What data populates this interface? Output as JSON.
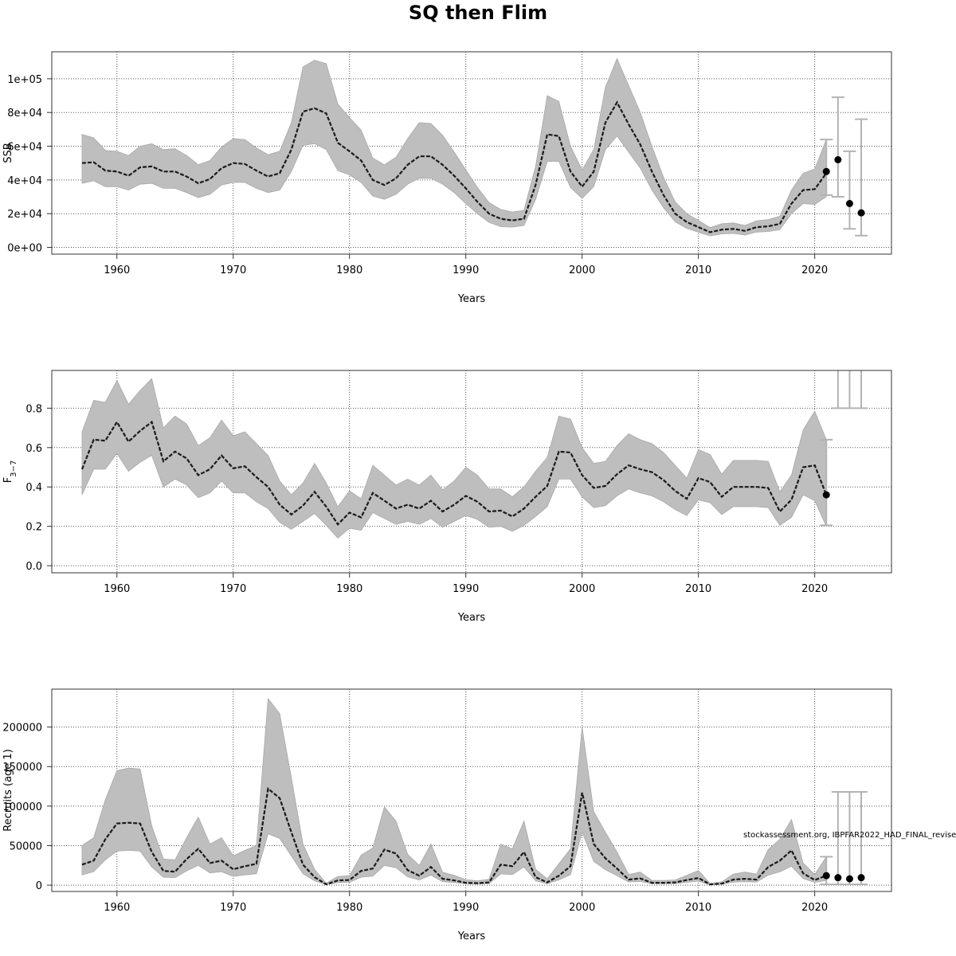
{
  "chart_data": {
    "title": "SQ then Flim",
    "annotation": "stockassessment.org, IBPFAR2022_HAD_FINAL_revised",
    "colors": {
      "band": "#bebebe",
      "band_edge": "#a8a8a8",
      "line": "#1a1a1a",
      "grid": "#555555",
      "forecast_bar": "#b3b3b3",
      "point": "#000000"
    },
    "panels": [
      {
        "type": "line",
        "id": "ssb",
        "ylabel": "SSB",
        "xlabel": "Years",
        "xlim": [
          1954.4,
          2026.6
        ],
        "ylim": [
          -4000,
          116000
        ],
        "xticks": [
          1960,
          1970,
          1980,
          1990,
          2000,
          2010,
          2020
        ],
        "yticks": [
          0,
          20000,
          40000,
          60000,
          80000,
          100000
        ],
        "yticklabels": [
          "0e+00",
          "2e+04",
          "4e+04",
          "6e+04",
          "8e+04",
          "1e+05"
        ],
        "grid": true,
        "x": [
          1957,
          1958,
          1959,
          1960,
          1961,
          1962,
          1963,
          1964,
          1965,
          1966,
          1967,
          1968,
          1969,
          1970,
          1971,
          1972,
          1973,
          1974,
          1975,
          1976,
          1977,
          1978,
          1979,
          1980,
          1981,
          1982,
          1983,
          1984,
          1985,
          1986,
          1987,
          1988,
          1989,
          1990,
          1991,
          1992,
          1993,
          1994,
          1995,
          1996,
          1997,
          1998,
          1999,
          2000,
          2001,
          2002,
          2003,
          2004,
          2005,
          2006,
          2007,
          2008,
          2009,
          2010,
          2011,
          2012,
          2013,
          2014,
          2015,
          2016,
          2017,
          2018,
          2019,
          2020,
          2021
        ],
        "estimate": [
          50000,
          50500,
          45500,
          45000,
          42500,
          47500,
          48000,
          45000,
          45000,
          42000,
          38000,
          40500,
          47000,
          50000,
          49500,
          45500,
          42000,
          44000,
          58000,
          80500,
          82500,
          79500,
          62000,
          57000,
          51500,
          40000,
          37000,
          41000,
          49000,
          54000,
          54000,
          49000,
          42500,
          35000,
          27000,
          20000,
          17000,
          16000,
          17000,
          37000,
          67000,
          66000,
          45000,
          36000,
          45000,
          74000,
          86000,
          73000,
          61000,
          45000,
          31000,
          20000,
          15000,
          12000,
          9000,
          10500,
          11000,
          9800,
          12000,
          12500,
          14000,
          26000,
          34000,
          34500,
          44000
        ],
        "lower": [
          38000,
          39500,
          36000,
          36000,
          34000,
          37500,
          38000,
          35000,
          35000,
          32500,
          29500,
          31500,
          37000,
          38500,
          38500,
          35000,
          32500,
          34000,
          45000,
          60500,
          61500,
          58000,
          45500,
          43000,
          38500,
          30500,
          28500,
          31500,
          37500,
          41000,
          41000,
          37500,
          32500,
          26000,
          20000,
          14800,
          12300,
          12000,
          13000,
          28500,
          51000,
          51000,
          35500,
          29000,
          36000,
          58000,
          66000,
          56500,
          47000,
          34000,
          23500,
          15200,
          11300,
          9000,
          6800,
          8000,
          8300,
          7300,
          9100,
          9400,
          10500,
          20000,
          26000,
          25500,
          30000
        ],
        "upper": [
          67000,
          65000,
          57500,
          57000,
          54500,
          60000,
          61500,
          58000,
          58500,
          54500,
          49000,
          51500,
          59500,
          64500,
          64000,
          59000,
          55000,
          57000,
          74000,
          107000,
          111000,
          109000,
          85000,
          77000,
          69500,
          53000,
          49000,
          53500,
          64500,
          74000,
          73500,
          66500,
          56500,
          46000,
          35500,
          26500,
          22500,
          21000,
          22000,
          48000,
          90000,
          86500,
          60000,
          46000,
          58000,
          95000,
          112000,
          96000,
          80000,
          60000,
          41500,
          27000,
          20000,
          16000,
          11800,
          14000,
          14500,
          13000,
          15800,
          16500,
          18500,
          34000,
          44000,
          46500,
          64000
        ],
        "forecast": [
          {
            "x": 2021,
            "mean": 45000,
            "low": 31000,
            "high": 64000
          },
          {
            "x": 2022,
            "mean": 52000,
            "low": 30000,
            "high": 89000
          },
          {
            "x": 2023,
            "mean": 26000,
            "low": 11000,
            "high": 57000
          },
          {
            "x": 2024,
            "mean": 20500,
            "low": 7000,
            "high": 76000
          }
        ]
      },
      {
        "type": "line",
        "id": "fbar",
        "ylabel": "F",
        "ylabel_subscript": "3−7",
        "xlabel": "Years",
        "xlim": [
          1954.4,
          2026.6
        ],
        "ylim": [
          -0.036,
          0.9917
        ],
        "xticks": [
          1960,
          1970,
          1980,
          1990,
          2000,
          2010,
          2020
        ],
        "yticks": [
          0,
          0.2,
          0.4,
          0.6,
          0.8
        ],
        "yticklabels": [
          "0.0",
          "0.2",
          "0.4",
          "0.6",
          "0.8"
        ],
        "grid": true,
        "x": [
          1957,
          1958,
          1959,
          1960,
          1961,
          1962,
          1963,
          1964,
          1965,
          1966,
          1967,
          1968,
          1969,
          1970,
          1971,
          1972,
          1973,
          1974,
          1975,
          1976,
          1977,
          1978,
          1979,
          1980,
          1981,
          1982,
          1983,
          1984,
          1985,
          1986,
          1987,
          1988,
          1989,
          1990,
          1991,
          1992,
          1993,
          1994,
          1995,
          1996,
          1997,
          1998,
          1999,
          2000,
          2001,
          2002,
          2003,
          2004,
          2005,
          2006,
          2007,
          2008,
          2009,
          2010,
          2011,
          2012,
          2013,
          2014,
          2015,
          2016,
          2017,
          2018,
          2019,
          2020,
          2021
        ],
        "estimate": [
          0.49,
          0.64,
          0.635,
          0.73,
          0.63,
          0.685,
          0.73,
          0.53,
          0.58,
          0.545,
          0.46,
          0.49,
          0.56,
          0.495,
          0.505,
          0.45,
          0.4,
          0.31,
          0.26,
          0.305,
          0.375,
          0.3,
          0.21,
          0.27,
          0.245,
          0.37,
          0.33,
          0.29,
          0.31,
          0.29,
          0.33,
          0.275,
          0.31,
          0.355,
          0.325,
          0.275,
          0.28,
          0.25,
          0.29,
          0.35,
          0.405,
          0.58,
          0.575,
          0.46,
          0.395,
          0.405,
          0.465,
          0.51,
          0.49,
          0.475,
          0.435,
          0.38,
          0.34,
          0.445,
          0.425,
          0.35,
          0.4,
          0.4,
          0.4,
          0.395,
          0.275,
          0.335,
          0.5,
          0.51,
          0.36
        ],
        "lower": [
          0.36,
          0.49,
          0.49,
          0.57,
          0.48,
          0.525,
          0.56,
          0.4,
          0.44,
          0.41,
          0.345,
          0.37,
          0.43,
          0.37,
          0.37,
          0.325,
          0.29,
          0.22,
          0.185,
          0.225,
          0.265,
          0.205,
          0.14,
          0.19,
          0.18,
          0.27,
          0.24,
          0.21,
          0.225,
          0.21,
          0.24,
          0.195,
          0.225,
          0.255,
          0.235,
          0.195,
          0.2,
          0.175,
          0.205,
          0.25,
          0.3,
          0.44,
          0.44,
          0.35,
          0.295,
          0.305,
          0.355,
          0.39,
          0.37,
          0.355,
          0.325,
          0.285,
          0.255,
          0.335,
          0.32,
          0.26,
          0.3,
          0.3,
          0.3,
          0.295,
          0.205,
          0.245,
          0.36,
          0.33,
          0.2
        ],
        "upper": [
          0.68,
          0.84,
          0.83,
          0.94,
          0.82,
          0.89,
          0.95,
          0.7,
          0.76,
          0.72,
          0.61,
          0.65,
          0.74,
          0.66,
          0.68,
          0.62,
          0.56,
          0.43,
          0.36,
          0.42,
          0.52,
          0.42,
          0.3,
          0.38,
          0.34,
          0.51,
          0.46,
          0.41,
          0.44,
          0.41,
          0.46,
          0.385,
          0.43,
          0.5,
          0.46,
          0.39,
          0.39,
          0.35,
          0.4,
          0.48,
          0.55,
          0.76,
          0.745,
          0.6,
          0.52,
          0.53,
          0.61,
          0.67,
          0.64,
          0.62,
          0.575,
          0.51,
          0.445,
          0.59,
          0.565,
          0.465,
          0.535,
          0.535,
          0.535,
          0.53,
          0.375,
          0.46,
          0.69,
          0.785,
          0.64
        ],
        "forecast": [
          {
            "x": 2021,
            "mean": 0.36,
            "low": 0.205,
            "high": 0.64
          },
          {
            "x": 2022,
            "mean": null,
            "low": 0.8,
            "high": 1.5
          },
          {
            "x": 2023,
            "mean": null,
            "low": 0.8,
            "high": 1.5
          },
          {
            "x": 2024,
            "mean": null,
            "low": 0.8,
            "high": 1.5
          }
        ]
      },
      {
        "type": "line",
        "id": "recruits",
        "ylabel": "Recruits (age 1)",
        "xlabel": "Years",
        "xlim": [
          1954.4,
          2026.6
        ],
        "ylim": [
          -8000,
          248000
        ],
        "xticks": [
          1960,
          1970,
          1980,
          1990,
          2000,
          2010,
          2020
        ],
        "yticks": [
          0,
          50000,
          100000,
          150000,
          200000
        ],
        "yticklabels": [
          "0",
          "50000",
          "100000",
          "150000",
          "200000"
        ],
        "grid": true,
        "x": [
          1957,
          1958,
          1959,
          1960,
          1961,
          1962,
          1963,
          1964,
          1965,
          1966,
          1967,
          1968,
          1969,
          1970,
          1971,
          1972,
          1973,
          1974,
          1975,
          1976,
          1977,
          1978,
          1979,
          1980,
          1981,
          1982,
          1983,
          1984,
          1985,
          1986,
          1987,
          1988,
          1989,
          1990,
          1991,
          1992,
          1993,
          1994,
          1995,
          1996,
          1997,
          1998,
          1999,
          2000,
          2001,
          2002,
          2003,
          2004,
          2005,
          2006,
          2007,
          2008,
          2009,
          2010,
          2011,
          2012,
          2013,
          2014,
          2015,
          2016,
          2017,
          2018,
          2019,
          2020,
          2021
        ],
        "estimate": [
          26000,
          31000,
          58000,
          78000,
          79000,
          78000,
          42000,
          18000,
          17000,
          33000,
          46000,
          28000,
          31000,
          20000,
          24000,
          27000,
          122000,
          110000,
          67000,
          26000,
          10000,
          1000,
          6000,
          6500,
          18000,
          21000,
          45000,
          40000,
          19000,
          12000,
          23000,
          8000,
          6000,
          3000,
          2500,
          3500,
          26000,
          24000,
          42000,
          10000,
          3500,
          12000,
          24000,
          117000,
          52000,
          34000,
          21000,
          7000,
          8500,
          3000,
          3000,
          3500,
          6500,
          9000,
          1000,
          2000,
          7000,
          8000,
          7000,
          23000,
          31000,
          44000,
          15000,
          6500,
          12000
        ],
        "lower": [
          13000,
          17000,
          32000,
          43000,
          44000,
          43000,
          23000,
          10000,
          9500,
          18000,
          25000,
          15500,
          17000,
          11000,
          13000,
          14500,
          65000,
          59000,
          37000,
          14500,
          5500,
          500,
          3300,
          3600,
          10000,
          11500,
          25000,
          22000,
          10500,
          6500,
          12700,
          4400,
          3300,
          1700,
          1400,
          1900,
          14300,
          13300,
          23000,
          5500,
          1900,
          6600,
          13200,
          67000,
          30000,
          19500,
          12000,
          4000,
          4700,
          1700,
          1700,
          1900,
          3600,
          5000,
          500,
          1100,
          3900,
          4400,
          3900,
          12700,
          17000,
          24000,
          8300,
          3600,
          6000
        ],
        "upper": [
          50000,
          60000,
          108000,
          145000,
          148000,
          147000,
          75000,
          33000,
          32000,
          60000,
          86000,
          52000,
          60000,
          37000,
          44000,
          50000,
          236000,
          217000,
          136000,
          52000,
          20000,
          2500,
          11000,
          12000,
          38000,
          47000,
          99000,
          81000,
          39000,
          25000,
          52000,
          16500,
          12500,
          7000,
          5500,
          7500,
          52000,
          46000,
          81000,
          20000,
          8000,
          27000,
          46000,
          200000,
          93000,
          67000,
          42000,
          13500,
          16500,
          6000,
          6000,
          6500,
          12500,
          18500,
          2000,
          4200,
          14000,
          16500,
          14000,
          45000,
          58000,
          83000,
          28000,
          13500,
          36000
        ],
        "forecast": [
          {
            "x": 2021,
            "mean": 12000,
            "low": 1000,
            "high": 36000
          },
          {
            "x": 2022,
            "mean": 9500,
            "low": 1000,
            "high": 118000
          },
          {
            "x": 2023,
            "mean": 8000,
            "low": 1000,
            "high": 118000
          },
          {
            "x": 2024,
            "mean": 9500,
            "low": 1000,
            "high": 118000
          }
        ]
      }
    ]
  }
}
